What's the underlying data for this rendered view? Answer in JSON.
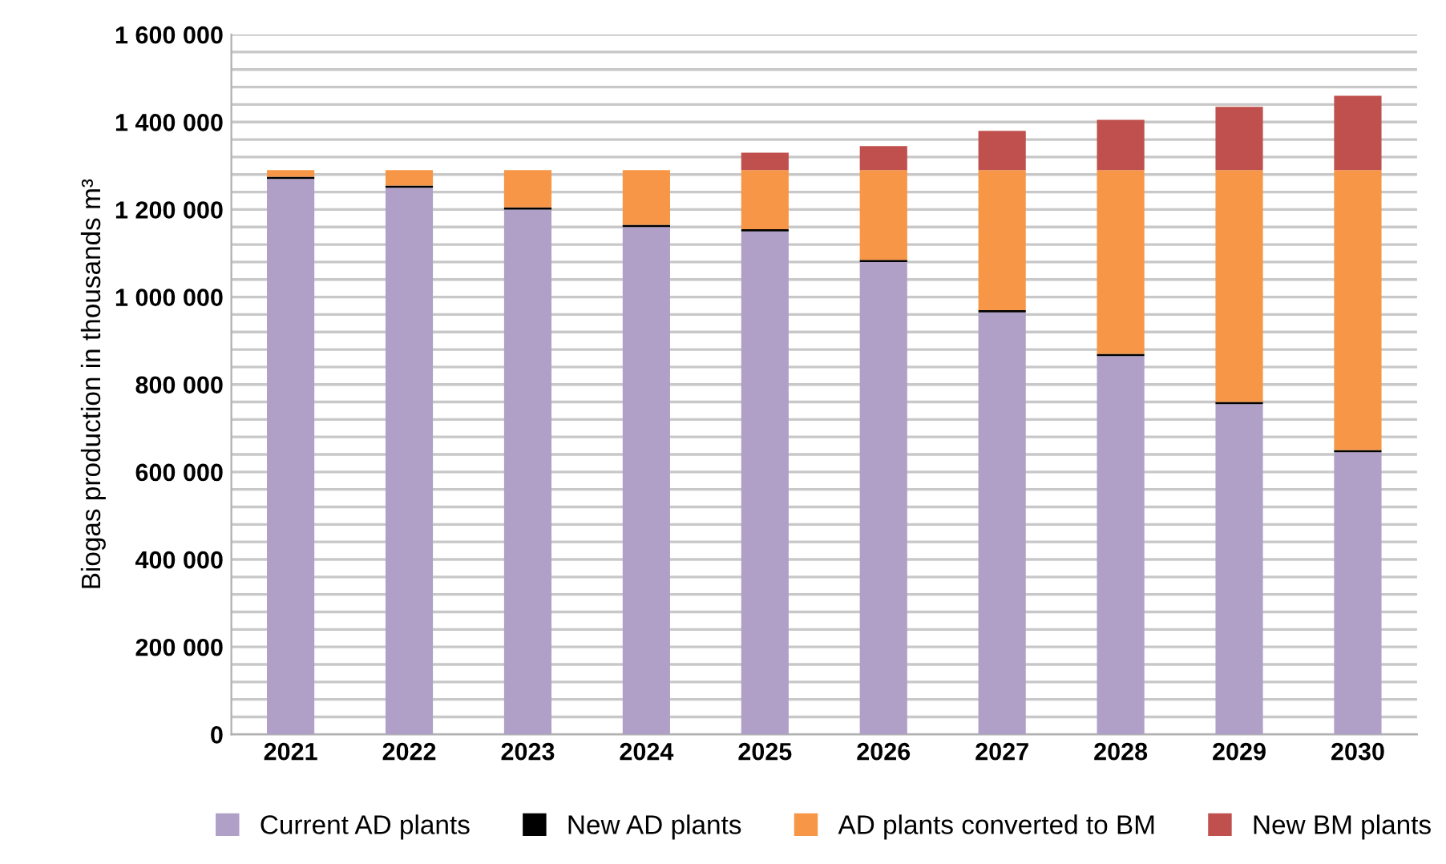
{
  "chart_data": {
    "type": "bar",
    "stacked": true,
    "ylabel": "Biogas production in thousands m³",
    "categories": [
      "2021",
      "2022",
      "2023",
      "2024",
      "2025",
      "2026",
      "2027",
      "2028",
      "2029",
      "2030"
    ],
    "series": [
      {
        "name": "Current AD plants",
        "color": "#b0a0c8",
        "values": [
          1270000,
          1250000,
          1200000,
          1160000,
          1150000,
          1080000,
          965000,
          865000,
          755000,
          645000
        ]
      },
      {
        "name": "New AD plants",
        "color": "#000000",
        "values": [
          5000,
          5000,
          5000,
          5000,
          5000,
          5000,
          5000,
          5000,
          5000,
          5000
        ]
      },
      {
        "name": "AD plants converted to BM",
        "color": "#f79646",
        "values": [
          15000,
          35000,
          85000,
          125000,
          135000,
          205000,
          320000,
          420000,
          530000,
          640000
        ]
      },
      {
        "name": "New BM plants",
        "color": "#c0504d",
        "values": [
          0,
          0,
          0,
          0,
          40000,
          55000,
          90000,
          115000,
          145000,
          170000
        ]
      }
    ],
    "ylim": [
      0,
      1600000
    ],
    "yticks": [
      {
        "value": 0,
        "label": "0"
      },
      {
        "value": 40000,
        "label": null
      },
      {
        "value": 80000,
        "label": null
      },
      {
        "value": 120000,
        "label": null
      },
      {
        "value": 160000,
        "label": null
      },
      {
        "value": 200000,
        "label": "200 000"
      },
      {
        "value": 240000,
        "label": null
      },
      {
        "value": 280000,
        "label": null
      },
      {
        "value": 320000,
        "label": null
      },
      {
        "value": 360000,
        "label": null
      },
      {
        "value": 400000,
        "label": "400 000"
      },
      {
        "value": 440000,
        "label": null
      },
      {
        "value": 480000,
        "label": null
      },
      {
        "value": 520000,
        "label": null
      },
      {
        "value": 560000,
        "label": null
      },
      {
        "value": 600000,
        "label": "600 000"
      },
      {
        "value": 640000,
        "label": null
      },
      {
        "value": 680000,
        "label": null
      },
      {
        "value": 720000,
        "label": null
      },
      {
        "value": 760000,
        "label": null
      },
      {
        "value": 800000,
        "label": "800 000"
      },
      {
        "value": 840000,
        "label": null
      },
      {
        "value": 880000,
        "label": null
      },
      {
        "value": 920000,
        "label": null
      },
      {
        "value": 960000,
        "label": null
      },
      {
        "value": 1000000,
        "label": "1 000 000"
      },
      {
        "value": 1040000,
        "label": null
      },
      {
        "value": 1080000,
        "label": null
      },
      {
        "value": 1120000,
        "label": null
      },
      {
        "value": 1160000,
        "label": null
      },
      {
        "value": 1200000,
        "label": "1 200 000"
      },
      {
        "value": 1240000,
        "label": null
      },
      {
        "value": 1280000,
        "label": null
      },
      {
        "value": 1320000,
        "label": null
      },
      {
        "value": 1360000,
        "label": null
      },
      {
        "value": 1400000,
        "label": "1 400 000"
      },
      {
        "value": 1440000,
        "label": null
      },
      {
        "value": 1480000,
        "label": null
      },
      {
        "value": 1520000,
        "label": null
      },
      {
        "value": 1560000,
        "label": null
      },
      {
        "value": 1600000,
        "label": "1 600 000"
      }
    ],
    "grid": "y",
    "legend": "bottom"
  }
}
